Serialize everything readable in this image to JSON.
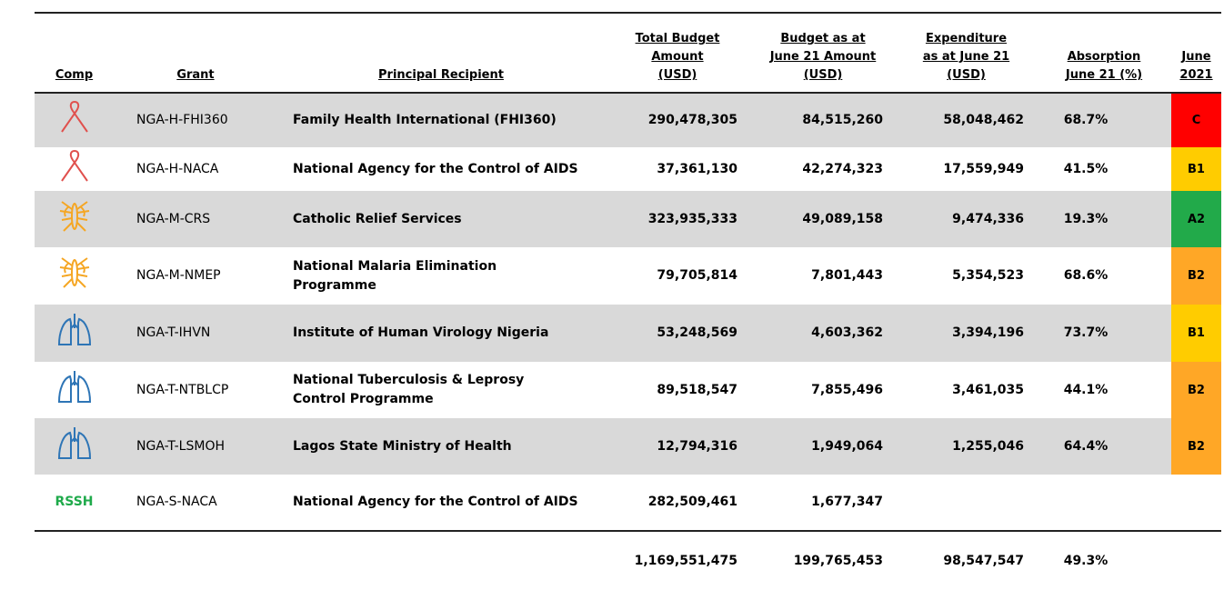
{
  "table": {
    "headers": [
      [
        "Comp"
      ],
      [
        "Grant"
      ],
      [
        "Principal Recipient"
      ],
      [
        "Total Budget",
        "Amount",
        "(USD)"
      ],
      [
        "Budget as at",
        "June 21 Amount",
        "(USD)"
      ],
      [
        "Expenditure",
        "as at June 21",
        "(USD)"
      ],
      [
        "Absorption",
        "June 21 (%)"
      ],
      [
        "June",
        "2021"
      ]
    ],
    "rows": [
      {
        "grant": "NGA-H-FHI360",
        "recipient": [
          "Family Health International (FHI360)"
        ],
        "total": "290,478,305",
        "budget": "84,515,260",
        "expenditure": "58,048,462",
        "absorption": "68.7%",
        "rating": "C",
        "rating_color": "#ff0000"
      },
      {
        "grant": "NGA-H-NACA",
        "recipient": [
          "National Agency for the Control of AIDS"
        ],
        "total": "37,361,130",
        "budget": "42,274,323",
        "expenditure": "17,559,949",
        "absorption": "41.5%",
        "rating": "B1",
        "rating_color": "#ffcc00"
      },
      {
        "grant": "NGA-M-CRS",
        "recipient": [
          "Catholic Relief Services"
        ],
        "total": "323,935,333",
        "budget": "49,089,158",
        "expenditure": "9,474,336",
        "absorption": "19.3%",
        "rating": "A2",
        "rating_color": "#22aa4a"
      },
      {
        "grant": "NGA-M-NMEP",
        "recipient": [
          "National Malaria Elimination",
          "Programme"
        ],
        "total": "79,705,814",
        "budget": "7,801,443",
        "expenditure": "5,354,523",
        "absorption": "68.6%",
        "rating": "B2",
        "rating_color": "#ffa726"
      },
      {
        "grant": "NGA-T-IHVN",
        "recipient": [
          "Institute of Human Virology Nigeria"
        ],
        "total": "53,248,569",
        "budget": "4,603,362",
        "expenditure": "3,394,196",
        "absorption": "73.7%",
        "rating": "B1",
        "rating_color": "#ffcc00"
      },
      {
        "grant": "NGA-T-NTBLCP",
        "recipient": [
          "National Tuberculosis & Leprosy",
          "Control Programme"
        ],
        "total": "89,518,547",
        "budget": "7,855,496",
        "expenditure": "3,461,035",
        "absorption": "44.1%",
        "rating": "B2",
        "rating_color": "#ffa726"
      },
      {
        "grant": "NGA-T-LSMOH",
        "recipient": [
          "Lagos State Ministry of Health"
        ],
        "total": "12,794,316",
        "budget": "1,949,064",
        "expenditure": "1,255,046",
        "absorption": "64.4%",
        "rating": "B2",
        "rating_color": "#ffa726"
      },
      {
        "comp": "RSSH",
        "grant": "NGA-S-NACA",
        "recipient": [
          "National Agency for the Control of AIDS"
        ],
        "total": "282,509,461",
        "budget": "1,677,347"
      }
    ],
    "totals": {
      "total": "1,169,551,475",
      "budget": "199,765,453",
      "expenditure": "98,547,547",
      "absorption": "49.3%"
    }
  }
}
